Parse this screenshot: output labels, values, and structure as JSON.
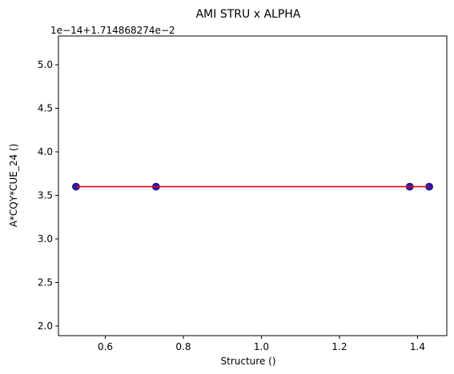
{
  "chart_data": {
    "type": "scatter",
    "title": "AMI STRU x ALPHA",
    "xlabel": "Structure ()",
    "ylabel": "A*CQY*CUE_24 ()",
    "offset_text": "1e−14+1.714868274e−2",
    "xlim": [
      0.48,
      1.475
    ],
    "ylim": [
      1.89,
      5.33
    ],
    "x_ticks": [
      0.6,
      0.8,
      1.0,
      1.2,
      1.4
    ],
    "x_tick_labels": [
      "0.6",
      "0.8",
      "1.0",
      "1.2",
      "1.4"
    ],
    "y_ticks": [
      2.0,
      2.5,
      3.0,
      3.5,
      4.0,
      4.5,
      5.0
    ],
    "y_tick_labels": [
      "2.0",
      "2.5",
      "3.0",
      "3.5",
      "4.0",
      "4.5",
      "5.0"
    ],
    "grid": false,
    "series": [
      {
        "kind": "scatter",
        "color": "#2a1aa8",
        "x": [
          0.525,
          0.73,
          1.38,
          1.43
        ],
        "y": [
          3.6,
          3.6,
          3.6,
          3.6
        ]
      },
      {
        "kind": "line",
        "color": "#e8000b",
        "x": [
          0.525,
          1.43
        ],
        "y": [
          3.6,
          3.6
        ]
      }
    ]
  }
}
